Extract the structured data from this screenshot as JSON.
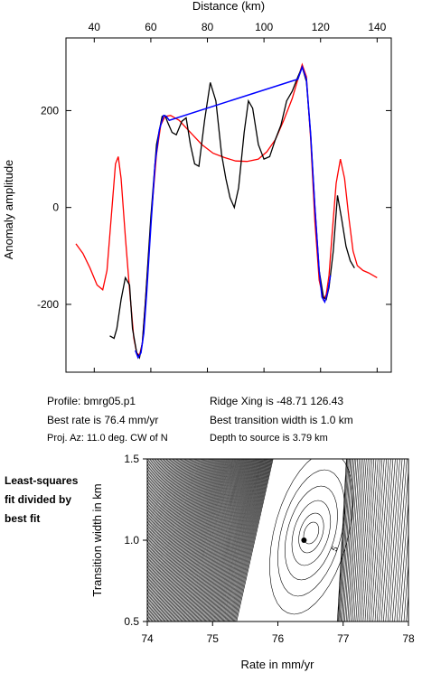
{
  "colors": {
    "observed": "#000000",
    "model": "#ff0000",
    "best_fit": "#0000ff"
  },
  "info": {
    "profile": "Profile: bmrg05.p1",
    "best_rate": "Best rate is 76.4 mm/yr",
    "proj_az": "Proj. Az: 11.0 deg. CW of N",
    "ridge_xing": "Ridge Xing is -48.71 126.43",
    "best_width": "Best transition width is 1.0 km",
    "depth": "Depth to source is   3.79 km"
  },
  "side_note": [
    "Least-squares",
    "fit divided by",
    "best fit"
  ],
  "chart_data": [
    {
      "type": "line",
      "xlabel": "Distance (km)",
      "ylabel": "Anomaly amplitude",
      "xlim": [
        30,
        145
      ],
      "ylim": [
        -340,
        350
      ],
      "x_ticks": [
        40,
        60,
        80,
        100,
        120,
        140
      ],
      "y_ticks": [
        -200,
        0,
        200
      ],
      "series": [
        {
          "key": "observed",
          "x": [
            45.5,
            47,
            48,
            49.5,
            51,
            52.5,
            53.5,
            55,
            56,
            57,
            58,
            60,
            62,
            64,
            65,
            66,
            67.5,
            69,
            71,
            72.5,
            74,
            75.5,
            77,
            79,
            81,
            83,
            85,
            86.5,
            88,
            89.5,
            91,
            93,
            94.5,
            96,
            98,
            100,
            102,
            104,
            106,
            108,
            110,
            112,
            113.5,
            115,
            116.5,
            118,
            119.5,
            121,
            122,
            123,
            124.5,
            126,
            127.5,
            129,
            130.5,
            132
          ],
          "y": [
            -265,
            -270,
            -250,
            -190,
            -145,
            -160,
            -250,
            -300,
            -310,
            -280,
            -200,
            -20,
            130,
            188,
            190,
            175,
            155,
            150,
            178,
            185,
            130,
            90,
            85,
            180,
            258,
            220,
            110,
            60,
            20,
            0,
            40,
            155,
            220,
            205,
            130,
            100,
            105,
            140,
            170,
            220,
            240,
            270,
            290,
            260,
            150,
            0,
            -130,
            -185,
            -190,
            -165,
            -90,
            25,
            -25,
            -80,
            -110,
            -125
          ]
        },
        {
          "key": "model",
          "x": [
            33.5,
            36,
            38.5,
            41,
            43,
            44.5,
            46,
            47.5,
            48.5,
            49.5,
            51,
            52.5,
            54,
            55,
            56,
            57,
            58,
            60,
            62,
            63.5,
            65,
            67,
            70,
            74,
            78,
            82,
            86,
            90,
            94,
            98,
            101,
            104,
            107,
            110,
            112,
            113.5,
            115,
            116.5,
            118,
            119.5,
            121,
            122,
            123,
            124,
            125.5,
            127,
            128.5,
            130,
            131.5,
            133,
            135,
            137,
            140
          ],
          "y": [
            -75,
            -95,
            -125,
            -160,
            -170,
            -130,
            -20,
            90,
            105,
            60,
            -60,
            -170,
            -270,
            -300,
            -305,
            -280,
            -200,
            -30,
            110,
            170,
            188,
            190,
            180,
            155,
            130,
            112,
            103,
            96,
            95,
            100,
            115,
            140,
            180,
            225,
            265,
            295,
            270,
            140,
            -30,
            -150,
            -190,
            -180,
            -140,
            -60,
            50,
            100,
            60,
            -20,
            -90,
            -120,
            -130,
            -135,
            -145
          ]
        },
        {
          "key": "best_fit",
          "x": [
            54.5,
            55.5,
            56.5,
            57.5,
            58.5,
            60,
            61.5,
            63,
            64.5,
            65.5,
            66.5,
            112,
            113.5,
            115,
            116.5,
            118,
            119.5,
            120.5,
            121.5,
            122.5,
            123.5
          ],
          "y": [
            -295,
            -310,
            -300,
            -260,
            -180,
            -40,
            90,
            160,
            190,
            188,
            180,
            265,
            290,
            265,
            150,
            0,
            -130,
            -185,
            -195,
            -175,
            -140
          ]
        }
      ]
    },
    {
      "type": "contour",
      "xlabel": "Rate in mm/yr",
      "ylabel": "Transition width in km",
      "xlim": [
        74,
        78
      ],
      "ylim": [
        0.5,
        1.5
      ],
      "x_ticks": [
        74,
        75,
        76,
        77,
        78
      ],
      "y_ticks": [
        0.5,
        1.0,
        1.5
      ],
      "best_point": {
        "rate": 76.4,
        "width": 1.0
      },
      "contour_label": "5"
    }
  ]
}
